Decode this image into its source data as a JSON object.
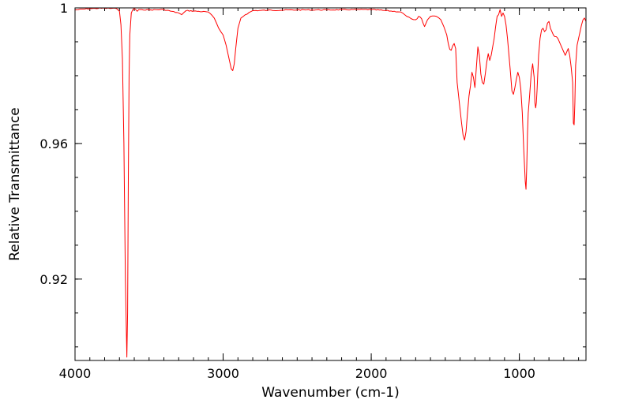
{
  "chart_data": {
    "type": "line",
    "title": "",
    "xlabel": "Wavenumber (cm-1)",
    "ylabel": "Relative Transmittance",
    "xlim": [
      4000,
      550
    ],
    "ylim": [
      0.896,
      1.0
    ],
    "grid": false,
    "x_ticks": [
      {
        "value": 4000,
        "label": "4000"
      },
      {
        "value": 3000,
        "label": "3000"
      },
      {
        "value": 2000,
        "label": "2000"
      },
      {
        "value": 1000,
        "label": "1000"
      }
    ],
    "y_ticks": [
      {
        "value": 1.0,
        "label": "1"
      },
      {
        "value": 0.96,
        "label": "0.96"
      },
      {
        "value": 0.92,
        "label": "0.92"
      }
    ],
    "series": [
      {
        "color": "#ff0000",
        "x": [
          4000,
          3900,
          3800,
          3720,
          3700,
          3690,
          3680,
          3670,
          3660,
          3650,
          3645,
          3640,
          3635,
          3630,
          3620,
          3610,
          3600,
          3590,
          3580,
          3570,
          3550,
          3500,
          3400,
          3300,
          3280,
          3250,
          3100,
          3060,
          3030,
          3000,
          2980,
          2960,
          2945,
          2935,
          2925,
          2915,
          2900,
          2880,
          2850,
          2800,
          2700,
          2500,
          2300,
          2100,
          2000,
          1900,
          1800,
          1760,
          1730,
          1700,
          1690,
          1680,
          1670,
          1660,
          1650,
          1640,
          1620,
          1600,
          1560,
          1530,
          1510,
          1490,
          1480,
          1470,
          1460,
          1450,
          1440,
          1430,
          1420,
          1410,
          1400,
          1390,
          1380,
          1370,
          1360,
          1350,
          1340,
          1330,
          1320,
          1310,
          1300,
          1290,
          1280,
          1270,
          1260,
          1250,
          1240,
          1230,
          1220,
          1210,
          1200,
          1190,
          1180,
          1170,
          1160,
          1150,
          1140,
          1130,
          1120,
          1110,
          1100,
          1090,
          1080,
          1070,
          1060,
          1050,
          1040,
          1030,
          1020,
          1010,
          1000,
          990,
          980,
          970,
          960,
          955,
          950,
          945,
          940,
          930,
          920,
          910,
          900,
          895,
          890,
          885,
          880,
          870,
          860,
          850,
          840,
          830,
          820,
          810,
          800,
          790,
          780,
          770,
          760,
          750,
          740,
          730,
          720,
          710,
          700,
          690,
          680,
          670,
          660,
          650,
          640,
          635,
          630,
          625,
          620,
          610,
          600,
          590,
          580,
          570,
          560,
          550
        ],
        "y": [
          0.9994,
          0.9998,
          0.9999,
          0.9998,
          0.999,
          0.995,
          0.985,
          0.96,
          0.92,
          0.897,
          0.91,
          0.95,
          0.98,
          0.992,
          0.9985,
          0.9995,
          0.9998,
          0.9995,
          0.999,
          0.9995,
          0.9995,
          0.9994,
          0.9995,
          0.9985,
          0.998,
          0.9992,
          0.9988,
          0.997,
          0.994,
          0.992,
          0.989,
          0.985,
          0.982,
          0.9815,
          0.9835,
          0.988,
          0.994,
          0.997,
          0.998,
          0.9992,
          0.9993,
          0.9994,
          0.9994,
          0.9995,
          0.9995,
          0.9992,
          0.9988,
          0.9975,
          0.9968,
          0.9965,
          0.9968,
          0.9975,
          0.9973,
          0.9968,
          0.9955,
          0.9945,
          0.9965,
          0.9975,
          0.9975,
          0.9965,
          0.9945,
          0.992,
          0.9895,
          0.9878,
          0.9875,
          0.9888,
          0.9895,
          0.988,
          0.978,
          0.974,
          0.97,
          0.966,
          0.9625,
          0.961,
          0.9635,
          0.969,
          0.974,
          0.977,
          0.981,
          0.9795,
          0.9765,
          0.9825,
          0.9885,
          0.986,
          0.9805,
          0.978,
          0.9775,
          0.9805,
          0.984,
          0.9865,
          0.9845,
          0.986,
          0.9885,
          0.991,
          0.9945,
          0.9975,
          0.998,
          0.9995,
          0.9975,
          0.9985,
          0.9975,
          0.995,
          0.991,
          0.986,
          0.981,
          0.9755,
          0.9745,
          0.9765,
          0.979,
          0.981,
          0.9795,
          0.976,
          0.969,
          0.958,
          0.9488,
          0.9465,
          0.953,
          0.963,
          0.969,
          0.9745,
          0.9805,
          0.9835,
          0.9795,
          0.972,
          0.9705,
          0.972,
          0.976,
          0.986,
          0.991,
          0.9935,
          0.994,
          0.993,
          0.9935,
          0.9955,
          0.996,
          0.994,
          0.993,
          0.992,
          0.9915,
          0.9915,
          0.991,
          0.99,
          0.989,
          0.988,
          0.987,
          0.986,
          0.987,
          0.988,
          0.986,
          0.9825,
          0.978,
          0.966,
          0.9655,
          0.972,
          0.983,
          0.989,
          0.991,
          0.993,
          0.995,
          0.9965,
          0.997,
          0.996
        ]
      }
    ]
  }
}
